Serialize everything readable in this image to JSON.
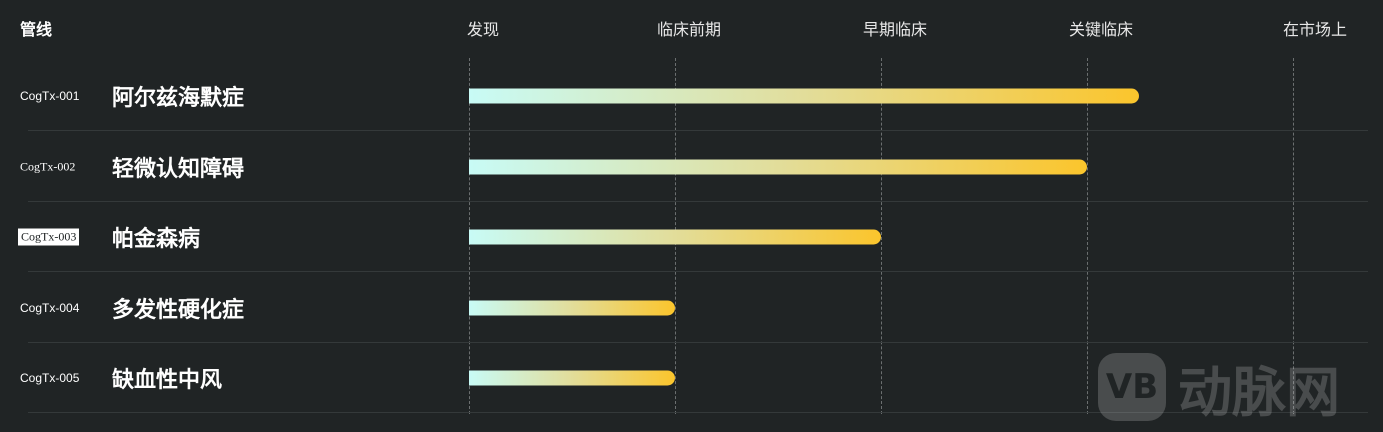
{
  "chart_data": {
    "type": "bar",
    "orientation": "horizontal",
    "header": "管线",
    "stages": [
      "发现",
      "临床前期",
      "早期临床",
      "关键临床",
      "在市场上"
    ],
    "rows": [
      {
        "code": "CogTx-001",
        "name": "阿尔兹海默症",
        "progress": 3.25
      },
      {
        "code": "CogTx-002",
        "name": "轻微认知障碍",
        "progress": 3.0
      },
      {
        "code": "CogTx-003",
        "name": "帕金森病",
        "progress": 2.0
      },
      {
        "code": "CogTx-004",
        "name": "多发性硬化症",
        "progress": 1.0
      },
      {
        "code": "CogTx-005",
        "name": "缺血性中风",
        "progress": 1.0
      }
    ],
    "bar_gradient": [
      "#c8fbf6",
      "#fbc52c"
    ],
    "grid": "dashed vertical"
  },
  "watermark": {
    "logo": "VB",
    "text": "动脉网"
  }
}
